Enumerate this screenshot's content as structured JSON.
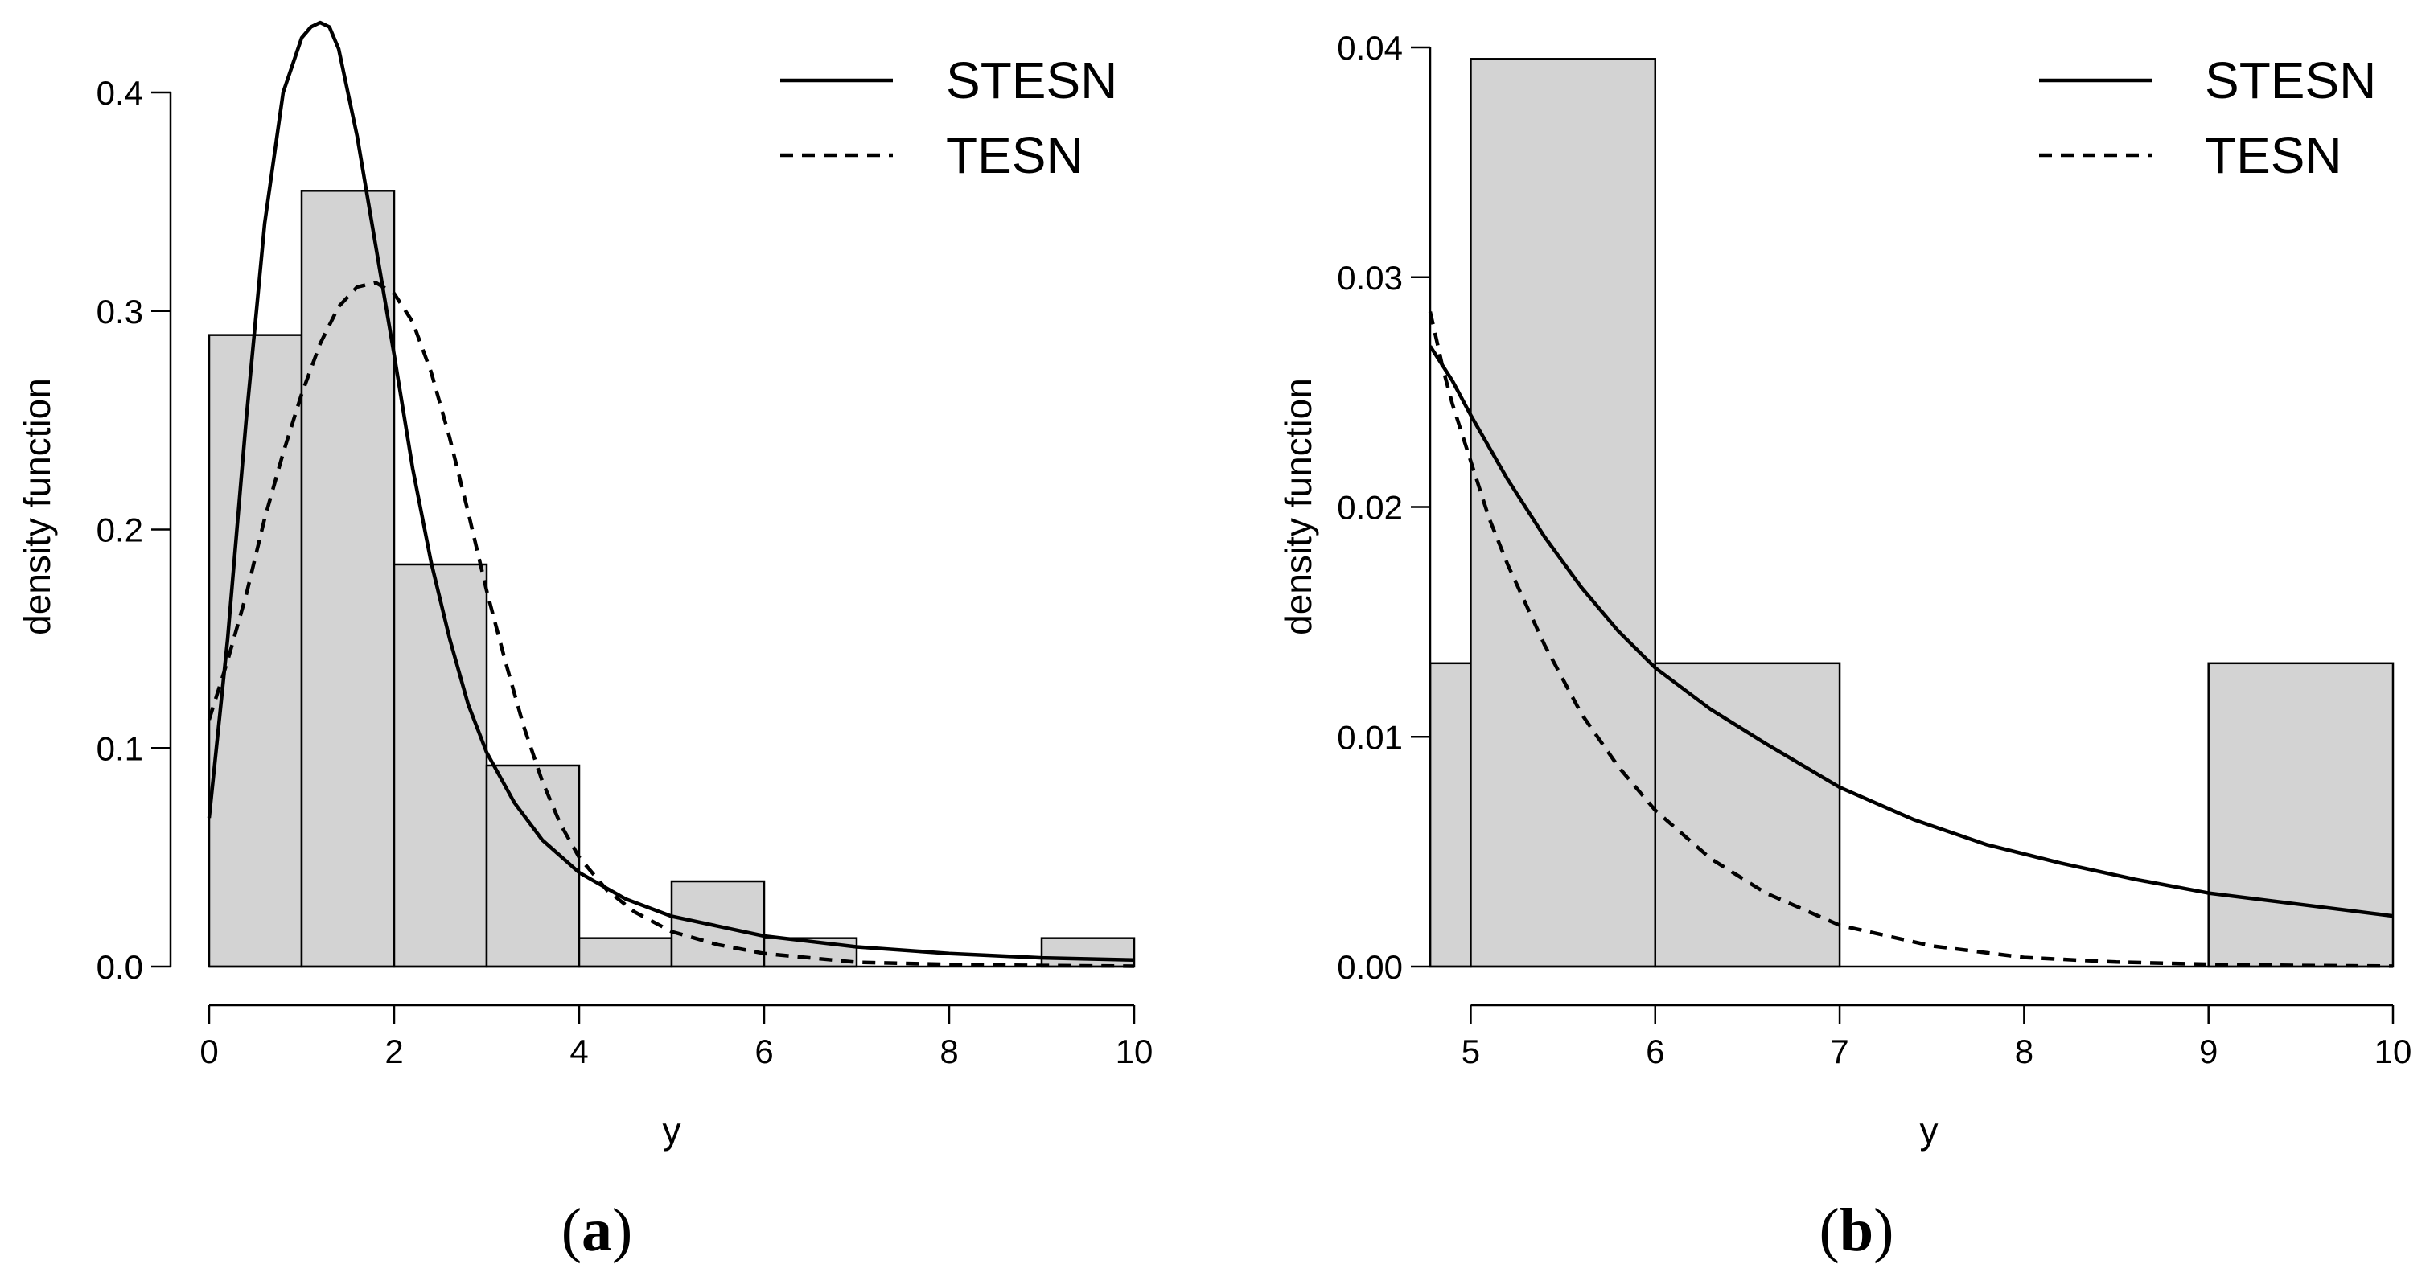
{
  "figure": {
    "panel_a_letter": "a",
    "panel_b_letter": "b"
  },
  "chart_data": [
    {
      "type": "bar",
      "panel": "(a)",
      "xlabel": "y",
      "ylabel": "density function",
      "xlim": [
        0,
        10
      ],
      "ylim": [
        0,
        0.4
      ],
      "xticks": [
        0,
        2,
        4,
        6,
        8,
        10
      ],
      "yticks": [
        0.0,
        0.1,
        0.2,
        0.3,
        0.4
      ],
      "xtick_labels": [
        "0",
        "2",
        "4",
        "6",
        "8",
        "10"
      ],
      "ytick_labels": [
        "0.0",
        "0.1",
        "0.2",
        "0.3",
        "0.4"
      ],
      "histogram": {
        "bin_edges": [
          0,
          1,
          2,
          3,
          4,
          5,
          6,
          7,
          8,
          9,
          10
        ],
        "values": [
          0.289,
          0.355,
          0.184,
          0.092,
          0.013,
          0.039,
          0.013,
          0,
          0,
          0.013
        ],
        "fill": "#d3d3d3"
      },
      "legend": {
        "position": "top-right",
        "entries": [
          {
            "label": "STESN",
            "style": "solid"
          },
          {
            "label": "TESN",
            "style": "dashed"
          }
        ]
      },
      "series": [
        {
          "name": "STESN",
          "style": "solid",
          "x": [
            0,
            0.2,
            0.4,
            0.6,
            0.8,
            1.0,
            1.1,
            1.2,
            1.3,
            1.4,
            1.6,
            1.8,
            2.0,
            2.2,
            2.4,
            2.6,
            2.8,
            3.0,
            3.3,
            3.6,
            4.0,
            4.5,
            5.0,
            6.0,
            7.0,
            8.0,
            9.0,
            10.0
          ],
          "y": [
            0.068,
            0.15,
            0.25,
            0.34,
            0.4,
            0.425,
            0.43,
            0.432,
            0.43,
            0.42,
            0.38,
            0.33,
            0.28,
            0.228,
            0.185,
            0.15,
            0.12,
            0.098,
            0.075,
            0.058,
            0.043,
            0.031,
            0.023,
            0.014,
            0.009,
            0.006,
            0.004,
            0.003
          ]
        },
        {
          "name": "TESN",
          "style": "dashed",
          "x": [
            0,
            0.2,
            0.4,
            0.6,
            0.8,
            1.0,
            1.2,
            1.4,
            1.6,
            1.8,
            2.0,
            2.2,
            2.4,
            2.6,
            2.8,
            3.0,
            3.2,
            3.4,
            3.6,
            3.8,
            4.0,
            4.3,
            4.6,
            5.0,
            5.5,
            6.0,
            7.0,
            8.0,
            9.0,
            10.0
          ],
          "y": [
            0.113,
            0.14,
            0.17,
            0.205,
            0.235,
            0.262,
            0.285,
            0.302,
            0.311,
            0.313,
            0.308,
            0.295,
            0.272,
            0.242,
            0.208,
            0.172,
            0.14,
            0.11,
            0.085,
            0.065,
            0.05,
            0.035,
            0.025,
            0.016,
            0.01,
            0.006,
            0.002,
            0.001,
            0.0005,
            0.0002
          ]
        }
      ]
    },
    {
      "type": "bar",
      "panel": "(b)",
      "xlabel": "y",
      "ylabel": "density function",
      "xlim": [
        4.78,
        10
      ],
      "ylim": [
        0,
        0.04
      ],
      "xticks": [
        5,
        6,
        7,
        8,
        9,
        10
      ],
      "yticks": [
        0.0,
        0.01,
        0.02,
        0.03,
        0.04
      ],
      "xtick_labels": [
        "5",
        "6",
        "7",
        "8",
        "9",
        "10"
      ],
      "ytick_labels": [
        "0.00",
        "0.01",
        "0.02",
        "0.03",
        "0.04"
      ],
      "histogram": {
        "bin_edges": [
          4.78,
          5,
          6,
          7,
          8,
          9,
          10
        ],
        "values": [
          0.0132,
          0.0395,
          0.0132,
          0,
          0,
          0.0132
        ],
        "fill": "#d3d3d3"
      },
      "legend": {
        "position": "top-right",
        "entries": [
          {
            "label": "STESN",
            "style": "solid"
          },
          {
            "label": "TESN",
            "style": "dashed"
          }
        ]
      },
      "series": [
        {
          "name": "STESN",
          "style": "solid",
          "x": [
            4.78,
            4.9,
            5.0,
            5.2,
            5.4,
            5.6,
            5.8,
            6.0,
            6.3,
            6.6,
            7.0,
            7.4,
            7.8,
            8.2,
            8.6,
            9.0,
            9.5,
            10.0
          ],
          "y": [
            0.027,
            0.0255,
            0.024,
            0.0212,
            0.0187,
            0.0165,
            0.0146,
            0.013,
            0.0112,
            0.0097,
            0.0078,
            0.0064,
            0.0053,
            0.0045,
            0.0038,
            0.0032,
            0.0027,
            0.0022
          ]
        },
        {
          "name": "TESN",
          "style": "dashed",
          "x": [
            4.78,
            4.85,
            4.9,
            5.0,
            5.1,
            5.2,
            5.4,
            5.6,
            5.8,
            6.0,
            6.3,
            6.6,
            7.0,
            7.5,
            8.0,
            8.5,
            9.0,
            9.5,
            10.0
          ],
          "y": [
            0.0285,
            0.026,
            0.0245,
            0.022,
            0.0195,
            0.0175,
            0.014,
            0.011,
            0.0087,
            0.0068,
            0.0047,
            0.0032,
            0.0018,
            0.0009,
            0.0004,
            0.0002,
            0.0001,
            5e-05,
            2e-05
          ]
        }
      ]
    }
  ]
}
